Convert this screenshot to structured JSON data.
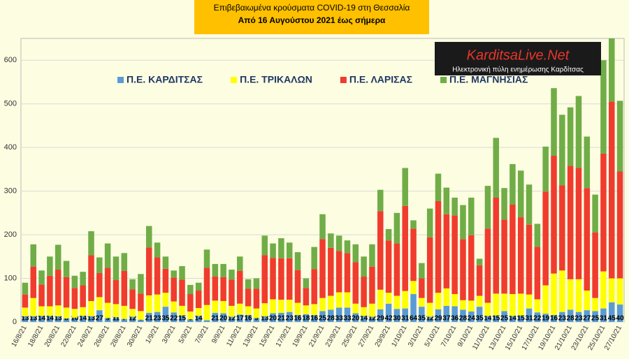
{
  "chart_data": {
    "type": "stacked_bar",
    "title": "Επιβεβαιωμένα κρούσματα COVID-19 στη Θεσσαλία",
    "subtitle": "Από 16 Αυγούστου 2021 έως σήμερα",
    "logo_title": "KarditsaLive.Net",
    "logo_subtitle": "Ηλεκτρονική πύλη ενημέρωσης Καρδίτσας",
    "categories": [
      "16/8/21",
      null,
      "18/8/21",
      null,
      "20/8/21",
      null,
      "22/8/21",
      null,
      "24/8/21",
      null,
      "26/8/21",
      null,
      "28/8/21",
      null,
      "30/8/21",
      null,
      "1/9/21",
      null,
      "3/9/21",
      null,
      "5/9/21",
      null,
      "7/9/21",
      null,
      "9/9/21",
      null,
      "11/9/21",
      null,
      "13/9/21",
      null,
      "15/9/21",
      null,
      "17/9/21",
      null,
      "19/9/21",
      null,
      "21/9/21",
      null,
      "23/9/21",
      null,
      "25/9/21",
      null,
      "27/9/21",
      null,
      "29/9/21",
      null,
      "1/10/21",
      null,
      "3/10/21",
      null,
      "5/10/21",
      null,
      "7/10/21",
      null,
      "9/10/21",
      null,
      "11/10/21",
      null,
      "13/10/21",
      null,
      "15/10/21",
      null,
      "17/10/21",
      null,
      "19/10/21",
      null,
      "21/10/21",
      null,
      "23/10/21",
      null,
      "25/10/21",
      null,
      "27/10/21"
    ],
    "series": [
      {
        "name": "Π.Ε. ΚΑΡΔΙΤΣΑΣ",
        "color": "#5b9bd5",
        "data_labels": true,
        "values": [
          13,
          13,
          14,
          14,
          13,
          8,
          10,
          14,
          13,
          27,
          9,
          11,
          7,
          12,
          5,
          21,
          23,
          35,
          22,
          15,
          6,
          14,
          4,
          21,
          20,
          12,
          17,
          16,
          9,
          13,
          20,
          21,
          23,
          16,
          18,
          16,
          25,
          28,
          33,
          33,
          20,
          14,
          12,
          29,
          42,
          30,
          31,
          64,
          35,
          12,
          29,
          37,
          36,
          28,
          24,
          35,
          14,
          15,
          25,
          14,
          15,
          31,
          22,
          19,
          16,
          23,
          28,
          23,
          27,
          25,
          31,
          45,
          40
        ]
      },
      {
        "name": "Π.Ε. ΤΡΙΚΑΛΩΝ",
        "color": "#ffff00",
        "values": [
          20,
          42,
          22,
          22,
          25,
          25,
          20,
          20,
          35,
          30,
          35,
          30,
          30,
          18,
          20,
          40,
          40,
          32,
          25,
          22,
          18,
          18,
          35,
          28,
          28,
          25,
          25,
          20,
          22,
          30,
          32,
          30,
          28,
          28,
          20,
          25,
          30,
          32,
          35,
          35,
          22,
          20,
          30,
          45,
          25,
          30,
          40,
          30,
          20,
          32,
          38,
          40,
          28,
          22,
          25,
          25,
          30,
          50,
          40,
          50,
          50,
          32,
          30,
          65,
          95,
          95,
          70,
          75,
          45,
          30,
          85,
          55,
          60
        ]
      },
      {
        "name": "Π.Ε. ΛΑΡΙΣΑΣ",
        "color": "#f03c2e",
        "values": [
          30,
          72,
          50,
          70,
          82,
          70,
          48,
          50,
          105,
          55,
          80,
          55,
          80,
          45,
          40,
          110,
          85,
          55,
          55,
          60,
          40,
          40,
          85,
          55,
          55,
          60,
          75,
          40,
          45,
          110,
          95,
          95,
          95,
          75,
          40,
          80,
          135,
          110,
          95,
          90,
          95,
          70,
          85,
          180,
          120,
          120,
          195,
          120,
          45,
          150,
          210,
          170,
          180,
          140,
          150,
          70,
          170,
          220,
          170,
          205,
          175,
          160,
          120,
          215,
          270,
          195,
          260,
          255,
          235,
          150,
          270,
          405,
          245
        ]
      },
      {
        "name": "Π.Ε. ΜΑΓΝΗΣΙΑΣ",
        "color": "#70ad47",
        "values": [
          27,
          51,
          32,
          44,
          57,
          37,
          28,
          31,
          55,
          36,
          56,
          54,
          41,
          23,
          45,
          49,
          34,
          28,
          16,
          31,
          21,
          18,
          42,
          29,
          30,
          23,
          33,
          22,
          24,
          45,
          33,
          46,
          36,
          41,
          22,
          51,
          57,
          33,
          35,
          29,
          41,
          46,
          51,
          49,
          26,
          70,
          87,
          19,
          35,
          66,
          63,
          61,
          41,
          78,
          86,
          15,
          98,
          137,
          72,
          93,
          107,
          92,
          53,
          103,
          155,
          162,
          134,
          165,
          118,
          87,
          214,
          145,
          162
        ]
      }
    ],
    "ylim": [
      0,
      650
    ],
    "yticks": [
      0,
      100,
      200,
      300,
      400,
      500,
      600
    ],
    "grid": true,
    "legend": "top"
  }
}
